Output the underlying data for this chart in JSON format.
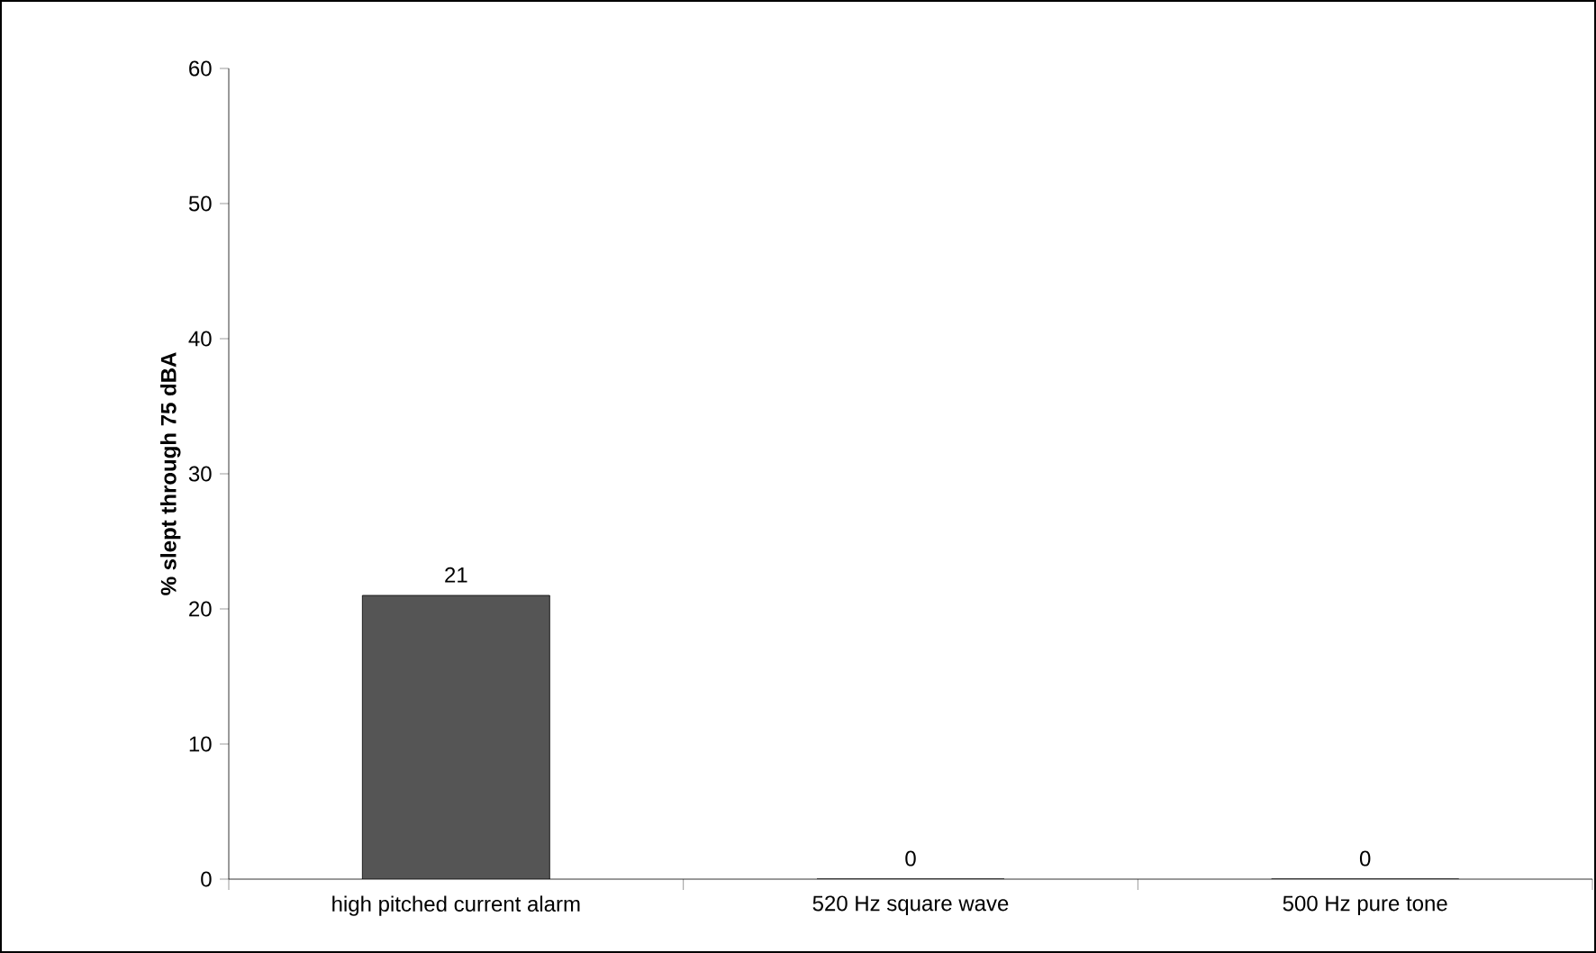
{
  "chart_data": {
    "type": "bar",
    "ylabel": "% slept through 75 dBA",
    "categories": [
      "high pitched current alarm",
      "520 Hz square wave",
      "500 Hz pure tone"
    ],
    "values": [
      21,
      0,
      0
    ],
    "color": "#555555",
    "data_labels": true,
    "ylim": [
      0,
      60
    ],
    "yticks": [
      0,
      10,
      20,
      30,
      40,
      50,
      60
    ],
    "grid": false
  }
}
